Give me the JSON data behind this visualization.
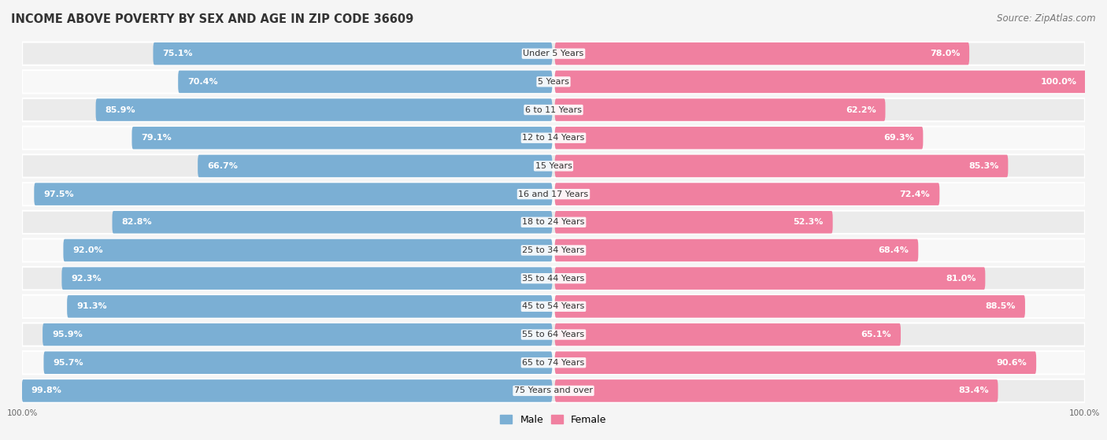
{
  "title": "INCOME ABOVE POVERTY BY SEX AND AGE IN ZIP CODE 36609",
  "source": "Source: ZipAtlas.com",
  "categories": [
    "Under 5 Years",
    "5 Years",
    "6 to 11 Years",
    "12 to 14 Years",
    "15 Years",
    "16 and 17 Years",
    "18 to 24 Years",
    "25 to 34 Years",
    "35 to 44 Years",
    "45 to 54 Years",
    "55 to 64 Years",
    "65 to 74 Years",
    "75 Years and over"
  ],
  "male_values": [
    75.1,
    70.4,
    85.9,
    79.1,
    66.7,
    97.5,
    82.8,
    92.0,
    92.3,
    91.3,
    95.9,
    95.7,
    99.8
  ],
  "female_values": [
    78.0,
    100.0,
    62.2,
    69.3,
    85.3,
    72.4,
    52.3,
    68.4,
    81.0,
    88.5,
    65.1,
    90.6,
    83.4
  ],
  "male_color": "#7bafd4",
  "female_color": "#f080a0",
  "male_light_color": "#b8d4ea",
  "female_light_color": "#f8c0d0",
  "male_label": "Male",
  "female_label": "Female",
  "bg_color": "#f5f5f5",
  "row_color_odd": "#ebebeb",
  "row_color_even": "#f8f8f8",
  "title_fontsize": 10.5,
  "source_fontsize": 8.5,
  "label_fontsize": 8.0,
  "value_fontsize": 8.0,
  "legend_fontsize": 9,
  "axis_max": 100
}
